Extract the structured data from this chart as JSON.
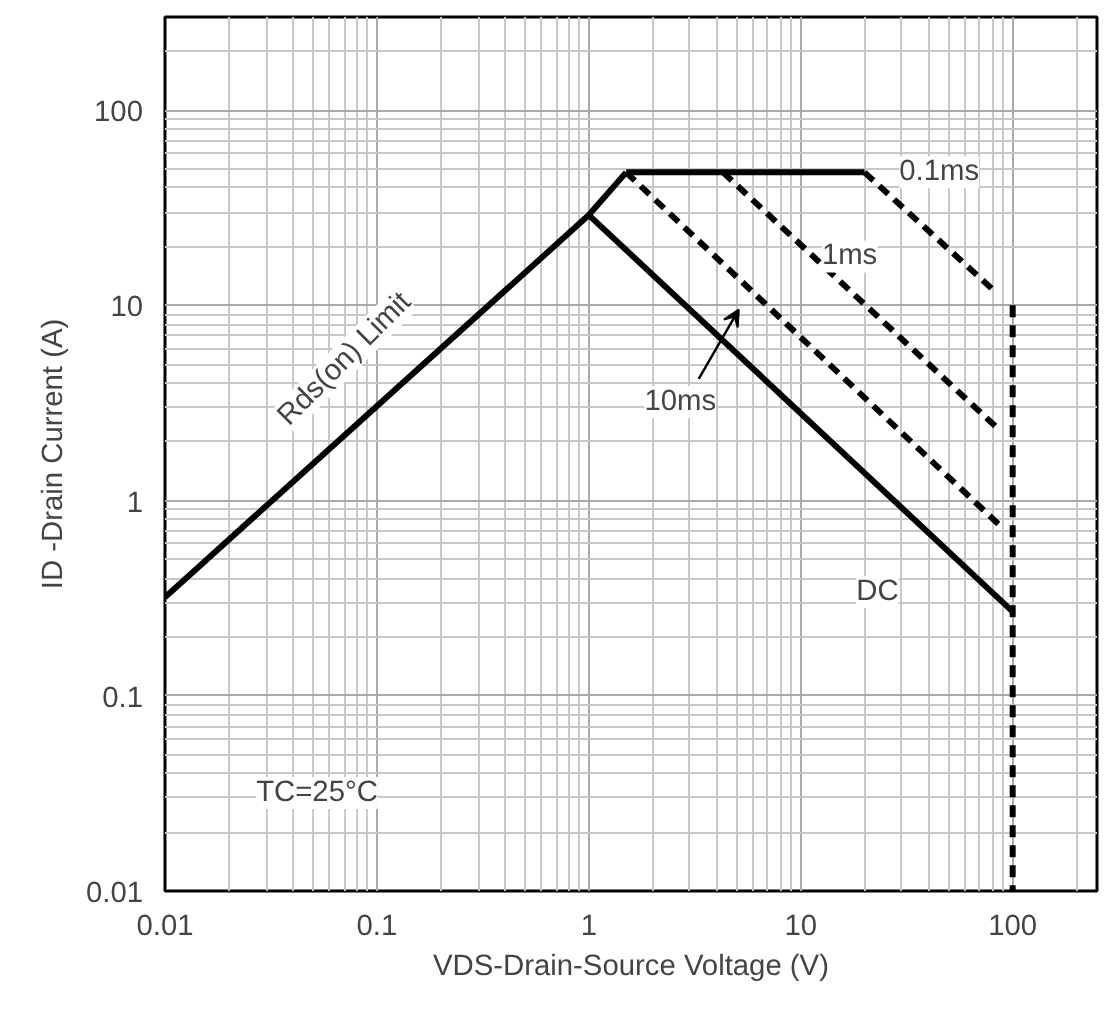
{
  "chart_data": {
    "type": "line",
    "xlabel": "VDS-Drain-Source Voltage (V)",
    "ylabel": "ID -Drain Current (A)",
    "log": "xy",
    "grid": true,
    "marker": "none",
    "xlim": [
      0.01,
      250
    ],
    "ylim": [
      0.01,
      300
    ],
    "xticks": [
      0.01,
      0.1,
      1,
      10,
      100
    ],
    "yticks": [
      0.01,
      0.1,
      1,
      10,
      100
    ],
    "series": [
      {
        "color": "#000000",
        "line_style": "solid",
        "x": [
          0.01,
          1,
          1.5
        ],
        "values": [
          0.32,
          29,
          48
        ]
      },
      {
        "color": "#000000",
        "line_style": "solid",
        "x": [
          1.5,
          20
        ],
        "values": [
          48,
          48
        ]
      },
      {
        "color": "#000000",
        "line_style": "dashed",
        "x": [
          20,
          83
        ],
        "values": [
          48,
          11.7
        ]
      },
      {
        "color": "#000000",
        "line_style": "dashed",
        "x": [
          4.3,
          83
        ],
        "values": [
          48,
          2.4
        ]
      },
      {
        "color": "#000000",
        "line_style": "dashed",
        "x": [
          1.5,
          90
        ],
        "values": [
          48,
          0.72
        ]
      },
      {
        "color": "#000000",
        "line_style": "solid",
        "x": [
          1,
          100
        ],
        "values": [
          29,
          0.27
        ]
      },
      {
        "color": "#000000",
        "line_style": "dashed",
        "x": [
          100,
          100
        ],
        "values": [
          10,
          0.01
        ]
      }
    ],
    "annotations": [
      {
        "text": "0.1ms",
        "x": 45,
        "y": 48
      },
      {
        "text": "1ms",
        "x": 17,
        "y": 17.8
      },
      {
        "text": "10ms",
        "x": 2.7,
        "y": 3.2
      },
      {
        "text": "DC",
        "x": 23,
        "y": 0.34
      },
      {
        "text": "Rds(on) Limit",
        "x": 0.1,
        "y": 3.0
      },
      "TC=25°C"
    ]
  }
}
